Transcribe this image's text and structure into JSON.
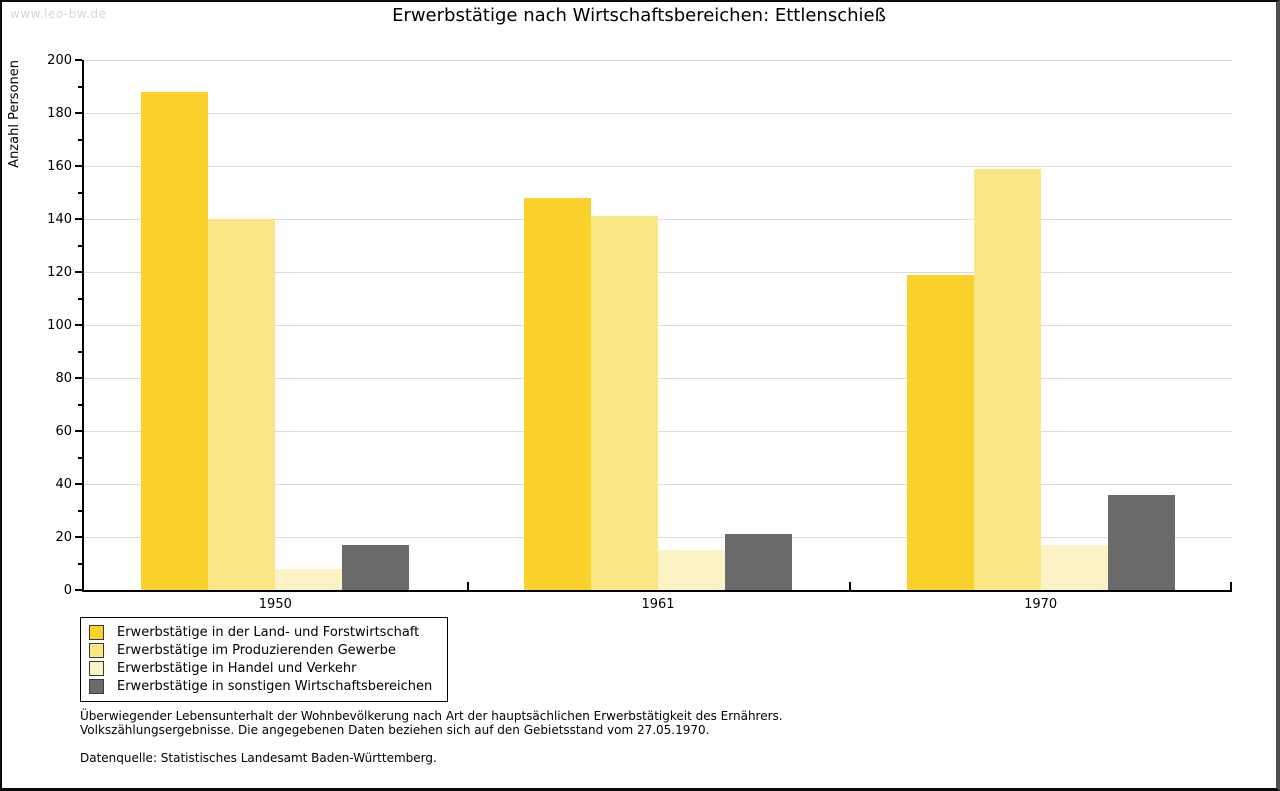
{
  "page": {
    "watermark": "www.leo-bw.de",
    "footnote_line1": "Überwiegender Lebensunterhalt der Wohnbevölkerung nach Art der hauptsächlichen Erwerbstätigkeit des Ernährers.",
    "footnote_line2": "Volkszählungsergebnisse. Die angegebenen Daten beziehen sich auf den Gebietsstand vom 27.05.1970.",
    "source_line": "Datenquelle: Statistisches Landesamt Baden-Württemberg."
  },
  "chart_data": {
    "type": "bar",
    "title": "Erwerbstätige nach Wirtschaftsbereichen: Ettlenschieß",
    "xlabel": "",
    "ylabel": "Anzahl Personen",
    "categories": [
      "1950",
      "1961",
      "1970"
    ],
    "series": [
      {
        "name": "Erwerbstätige in der Land- und Forstwirtschaft",
        "color": "#FBD22C",
        "values": [
          188,
          148,
          119
        ]
      },
      {
        "name": "Erwerbstätige im Produzierenden Gewerbe",
        "color": "#FAE685",
        "values": [
          140,
          141,
          159
        ]
      },
      {
        "name": "Erwerbstätige in Handel und Verkehr",
        "color": "#FBF3C6",
        "values": [
          8,
          15,
          17
        ]
      },
      {
        "name": "Erwerbstätige in sonstigen Wirtschaftsbereichen",
        "color": "#6A6A6A",
        "values": [
          17,
          21,
          36
        ]
      }
    ],
    "ylim": [
      0,
      200
    ],
    "ytick_step": 20,
    "minor_tick_step": 10,
    "grid": true,
    "grid_color": "#dcdcdc",
    "legend_position": "bottom-left"
  }
}
